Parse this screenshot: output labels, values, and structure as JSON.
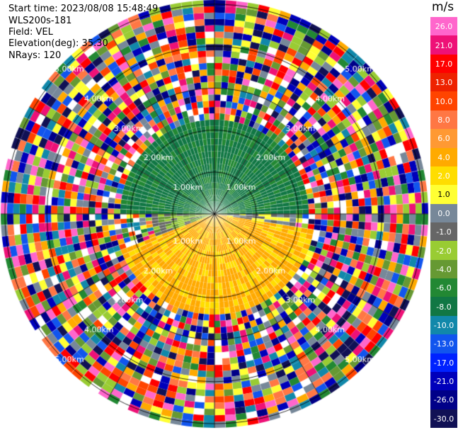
{
  "header": {
    "start_time": "Start time: 2023/08/08 15:48:49",
    "site": "WLS200s-181",
    "field": "Field: VEL",
    "elevation": "Elevation(deg): 35.30",
    "nrays": "NRays: 120"
  },
  "chart_data": {
    "type": "ppi",
    "unit_label": "m/s",
    "range_ring_labels": [
      "1.00km",
      "2.00km",
      "3.00km",
      "4.00km",
      "5.00km"
    ],
    "range_rings_km": [
      1,
      2,
      3,
      4,
      5
    ],
    "max_range_km": 5.1,
    "grid": true,
    "colorbar": {
      "position": "right",
      "ticks": [
        "26.0",
        "21.0",
        "17.0",
        "13.0",
        "10.0",
        "8.0",
        "6.0",
        "4.0",
        "2.0",
        "1.0",
        "0.0",
        "-1.0",
        "-2.0",
        "-4.0",
        "-6.0",
        "-8.0",
        "-10.0",
        "-13.0",
        "-17.0",
        "-21.0",
        "-26.0",
        "-30.0"
      ],
      "colors": [
        "#ff66cc",
        "#ee1177",
        "#ff0000",
        "#ee2200",
        "#ff4400",
        "#ff7744",
        "#ff9933",
        "#ffaa00",
        "#ffdd00",
        "#ffff33",
        "#778899",
        "#666666",
        "#99cc33",
        "#669933",
        "#228833",
        "#117744",
        "#1188aa",
        "#1155ee",
        "#0022ff",
        "#0000bb",
        "#000088",
        "#111155"
      ]
    },
    "velocity_regions": [
      {
        "sector_deg": [
          270,
          90
        ],
        "range_km": [
          0,
          2.2
        ],
        "value": -6.5,
        "note": "approaching"
      },
      {
        "sector_deg": [
          100,
          250
        ],
        "range_km": [
          0,
          2.4
        ],
        "value": 4.5,
        "note": "receding"
      },
      {
        "sector_deg": [
          250,
          290
        ],
        "range_km": [
          0,
          1.5
        ],
        "value": -1.5
      },
      {
        "sector_deg": [
          80,
          110
        ],
        "range_km": [
          0,
          2.0
        ],
        "value": 0.5
      }
    ]
  }
}
